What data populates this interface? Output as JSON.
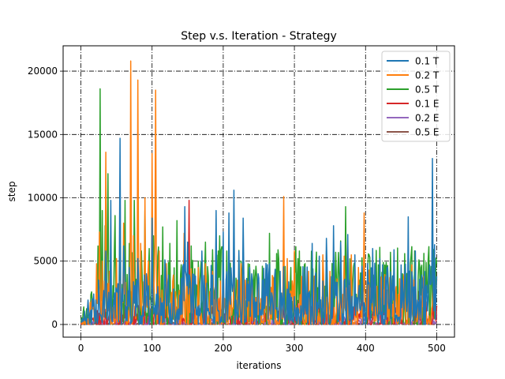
{
  "chart_data": {
    "type": "line",
    "title": "Step v.s. Iteration - Strategy",
    "xlabel": "iterations",
    "ylabel": "step",
    "xlim": [
      -25,
      525
    ],
    "ylim": [
      -1000,
      22000
    ],
    "xticks": [
      0,
      100,
      200,
      300,
      400,
      500
    ],
    "yticks": [
      0,
      5000,
      10000,
      15000,
      20000
    ],
    "grid": true,
    "legend_position": "top-right",
    "series_order": [
      "0.5 E",
      "0.2 E",
      "0.1 E",
      "0.5 T",
      "0.2 T",
      "0.1 T"
    ],
    "series": [
      {
        "name": "0.1 T",
        "color": "#1f77b4",
        "peaks": [
          [
            18,
            1200
          ],
          [
            25,
            3500
          ],
          [
            35,
            5800
          ],
          [
            42,
            9800
          ],
          [
            47,
            2500
          ],
          [
            55,
            14700
          ],
          [
            60,
            6200
          ],
          [
            68,
            4500
          ],
          [
            80,
            5200
          ],
          [
            92,
            4000
          ],
          [
            100,
            8400
          ],
          [
            108,
            3000
          ],
          [
            118,
            5100
          ],
          [
            130,
            2800
          ],
          [
            146,
            9300
          ],
          [
            150,
            6500
          ],
          [
            160,
            3200
          ],
          [
            170,
            5800
          ],
          [
            185,
            3900
          ],
          [
            190,
            9000
          ],
          [
            200,
            7300
          ],
          [
            208,
            8800
          ],
          [
            215,
            10600
          ],
          [
            222,
            5800
          ],
          [
            228,
            8400
          ],
          [
            240,
            4000
          ],
          [
            255,
            3500
          ],
          [
            268,
            2500
          ],
          [
            280,
            4200
          ],
          [
            292,
            3200
          ],
          [
            300,
            2200
          ],
          [
            315,
            4500
          ],
          [
            325,
            6400
          ],
          [
            335,
            5400
          ],
          [
            345,
            6800
          ],
          [
            355,
            7800
          ],
          [
            365,
            6500
          ],
          [
            375,
            7100
          ],
          [
            385,
            5500
          ],
          [
            395,
            4600
          ],
          [
            405,
            3300
          ],
          [
            410,
            6000
          ],
          [
            420,
            5200
          ],
          [
            430,
            4400
          ],
          [
            440,
            5900
          ],
          [
            450,
            4700
          ],
          [
            460,
            8500
          ],
          [
            470,
            5800
          ],
          [
            480,
            3600
          ],
          [
            490,
            4700
          ],
          [
            494,
            13100
          ],
          [
            497,
            6300
          ],
          [
            500,
            3000
          ]
        ],
        "base": 2200
      },
      {
        "name": "0.2 T",
        "color": "#ff7f0e",
        "peaks": [
          [
            15,
            800
          ],
          [
            22,
            4800
          ],
          [
            26,
            7300
          ],
          [
            30,
            5000
          ],
          [
            35,
            13600
          ],
          [
            40,
            4200
          ],
          [
            50,
            5200
          ],
          [
            60,
            8000
          ],
          [
            70,
            20800
          ],
          [
            74,
            7000
          ],
          [
            80,
            19300
          ],
          [
            84,
            6400
          ],
          [
            90,
            10000
          ],
          [
            95,
            5000
          ],
          [
            100,
            13500
          ],
          [
            105,
            18500
          ],
          [
            110,
            5800
          ],
          [
            120,
            4800
          ],
          [
            130,
            3900
          ],
          [
            145,
            7200
          ],
          [
            155,
            4400
          ],
          [
            165,
            4500
          ],
          [
            175,
            4800
          ],
          [
            185,
            4200
          ],
          [
            200,
            5000
          ],
          [
            215,
            4600
          ],
          [
            225,
            4800
          ],
          [
            240,
            3600
          ],
          [
            250,
            3300
          ],
          [
            260,
            4300
          ],
          [
            270,
            2700
          ],
          [
            285,
            10100
          ],
          [
            290,
            5200
          ],
          [
            300,
            5800
          ],
          [
            310,
            3800
          ],
          [
            320,
            4200
          ],
          [
            330,
            3600
          ],
          [
            340,
            5500
          ],
          [
            350,
            4200
          ],
          [
            360,
            3600
          ],
          [
            370,
            5400
          ],
          [
            380,
            5500
          ],
          [
            390,
            4500
          ],
          [
            398,
            8800
          ],
          [
            405,
            4300
          ],
          [
            420,
            3800
          ],
          [
            435,
            3600
          ],
          [
            450,
            3500
          ],
          [
            465,
            4700
          ],
          [
            480,
            2800
          ],
          [
            495,
            3000
          ],
          [
            500,
            3600
          ]
        ],
        "base": 1800
      },
      {
        "name": "0.5 T",
        "color": "#2ca02c",
        "peaks": [
          [
            10,
            500
          ],
          [
            18,
            2000
          ],
          [
            24,
            6200
          ],
          [
            27,
            18600
          ],
          [
            30,
            9000
          ],
          [
            34,
            7800
          ],
          [
            38,
            11900
          ],
          [
            42,
            3800
          ],
          [
            48,
            8600
          ],
          [
            55,
            5600
          ],
          [
            62,
            9800
          ],
          [
            68,
            6400
          ],
          [
            75,
            9800
          ],
          [
            85,
            5800
          ],
          [
            90,
            9000
          ],
          [
            96,
            6000
          ],
          [
            102,
            7000
          ],
          [
            108,
            5400
          ],
          [
            115,
            7700
          ],
          [
            125,
            6400
          ],
          [
            135,
            8200
          ],
          [
            145,
            5500
          ],
          [
            155,
            6200
          ],
          [
            165,
            5000
          ],
          [
            175,
            6500
          ],
          [
            185,
            5900
          ],
          [
            195,
            7000
          ],
          [
            205,
            5800
          ],
          [
            215,
            6300
          ],
          [
            225,
            5000
          ],
          [
            235,
            4800
          ],
          [
            245,
            3800
          ],
          [
            255,
            4600
          ],
          [
            265,
            7200
          ],
          [
            275,
            5600
          ],
          [
            285,
            5200
          ],
          [
            295,
            4500
          ],
          [
            305,
            5200
          ],
          [
            315,
            4800
          ],
          [
            325,
            3900
          ],
          [
            335,
            5300
          ],
          [
            345,
            5800
          ],
          [
            355,
            4600
          ],
          [
            365,
            6600
          ],
          [
            372,
            9300
          ],
          [
            378,
            5100
          ],
          [
            385,
            4700
          ],
          [
            395,
            5200
          ],
          [
            405,
            5500
          ],
          [
            415,
            4500
          ],
          [
            425,
            4900
          ],
          [
            435,
            5700
          ],
          [
            445,
            4400
          ],
          [
            455,
            5600
          ],
          [
            465,
            4700
          ],
          [
            475,
            5100
          ],
          [
            485,
            4900
          ],
          [
            495,
            5200
          ],
          [
            500,
            4800
          ]
        ],
        "base": 2800
      },
      {
        "name": "0.1 E",
        "color": "#d62728",
        "peaks": [
          [
            20,
            500
          ],
          [
            30,
            900
          ],
          [
            40,
            1200
          ],
          [
            50,
            700
          ],
          [
            60,
            1800
          ],
          [
            70,
            2600
          ],
          [
            80,
            1500
          ],
          [
            90,
            2100
          ],
          [
            100,
            1200
          ],
          [
            110,
            2400
          ],
          [
            120,
            1700
          ],
          [
            130,
            3200
          ],
          [
            140,
            2500
          ],
          [
            148,
            2000
          ],
          [
            152,
            9800
          ],
          [
            158,
            3300
          ],
          [
            165,
            2300
          ],
          [
            175,
            2900
          ],
          [
            185,
            1400
          ],
          [
            195,
            2100
          ],
          [
            205,
            1500
          ],
          [
            215,
            2300
          ],
          [
            225,
            1700
          ],
          [
            235,
            2100
          ],
          [
            245,
            1800
          ],
          [
            255,
            2400
          ],
          [
            265,
            1400
          ],
          [
            275,
            2100
          ],
          [
            285,
            1700
          ],
          [
            295,
            2500
          ],
          [
            305,
            1900
          ],
          [
            315,
            2600
          ],
          [
            325,
            1400
          ],
          [
            335,
            2200
          ],
          [
            345,
            1900
          ],
          [
            355,
            2800
          ],
          [
            365,
            2200
          ],
          [
            375,
            6400
          ],
          [
            380,
            4400
          ],
          [
            385,
            3200
          ],
          [
            395,
            2500
          ],
          [
            405,
            3100
          ],
          [
            415,
            2400
          ],
          [
            425,
            2800
          ],
          [
            435,
            2000
          ],
          [
            445,
            2700
          ],
          [
            455,
            2300
          ],
          [
            465,
            3400
          ],
          [
            475,
            2600
          ],
          [
            485,
            1800
          ],
          [
            495,
            2200
          ],
          [
            500,
            1500
          ]
        ],
        "base": 700
      },
      {
        "name": "0.2 E",
        "color": "#9467bd",
        "peaks": [
          [
            20,
            200
          ],
          [
            40,
            400
          ],
          [
            60,
            600
          ],
          [
            80,
            800
          ],
          [
            100,
            1100
          ],
          [
            112,
            1900
          ],
          [
            120,
            1300
          ],
          [
            140,
            900
          ],
          [
            160,
            1100
          ],
          [
            180,
            800
          ],
          [
            200,
            700
          ],
          [
            220,
            900
          ],
          [
            240,
            1200
          ],
          [
            260,
            600
          ],
          [
            280,
            800
          ],
          [
            300,
            900
          ],
          [
            320,
            700
          ],
          [
            340,
            1000
          ],
          [
            360,
            1200
          ],
          [
            380,
            1400
          ],
          [
            400,
            900
          ],
          [
            420,
            1600
          ],
          [
            440,
            2100
          ],
          [
            450,
            2300
          ],
          [
            460,
            1800
          ],
          [
            470,
            1400
          ],
          [
            480,
            1100
          ],
          [
            490,
            1500
          ],
          [
            500,
            800
          ]
        ],
        "base": 300
      },
      {
        "name": "0.5 E",
        "color": "#8c564b",
        "peaks": [
          [
            20,
            100
          ],
          [
            60,
            200
          ],
          [
            100,
            300
          ],
          [
            150,
            250
          ],
          [
            200,
            150
          ],
          [
            250,
            200
          ],
          [
            300,
            300
          ],
          [
            350,
            200
          ],
          [
            400,
            250
          ],
          [
            450,
            300
          ],
          [
            500,
            200
          ]
        ],
        "base": 80
      }
    ]
  }
}
